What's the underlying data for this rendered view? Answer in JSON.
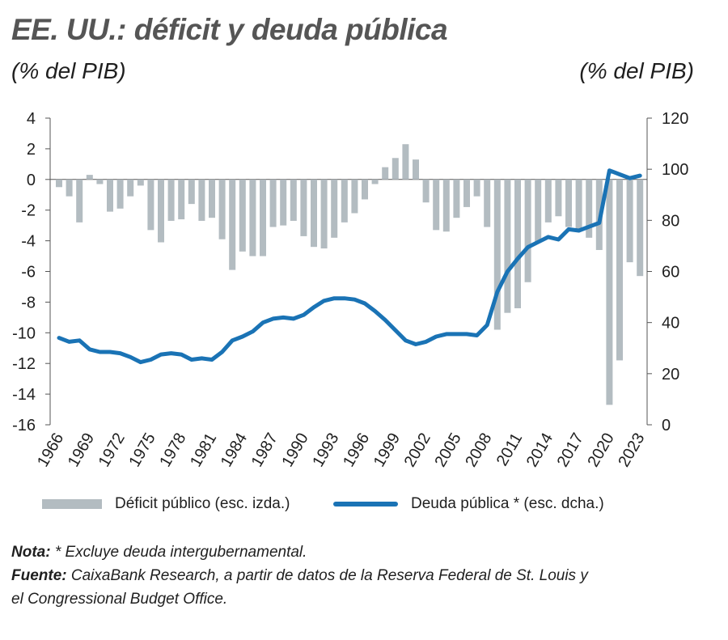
{
  "header": {
    "title": "EE. UU.: déficit y deuda pública",
    "unit_left": "(% del PIB)",
    "unit_right": "(% del PIB)"
  },
  "chart_data": {
    "type": "bar+line",
    "x": [
      1966,
      1967,
      1968,
      1969,
      1970,
      1971,
      1972,
      1973,
      1974,
      1975,
      1976,
      1977,
      1978,
      1979,
      1980,
      1981,
      1982,
      1983,
      1984,
      1985,
      1986,
      1987,
      1988,
      1989,
      1990,
      1991,
      1992,
      1993,
      1994,
      1995,
      1996,
      1997,
      1998,
      1999,
      2000,
      2001,
      2002,
      2003,
      2004,
      2005,
      2006,
      2007,
      2008,
      2009,
      2010,
      2011,
      2012,
      2013,
      2014,
      2015,
      2016,
      2017,
      2018,
      2019,
      2020,
      2021,
      2022,
      2023
    ],
    "x_tick_labels": [
      "1966",
      "1969",
      "1972",
      "1975",
      "1978",
      "1981",
      "1984",
      "1987",
      "1990",
      "1993",
      "1996",
      "1999",
      "2002",
      "2005",
      "2008",
      "2011",
      "2014",
      "2017",
      "2020",
      "2023"
    ],
    "series": [
      {
        "name": "Déficit público (esc. izda.)",
        "type": "bar",
        "axis": "left",
        "color": "#b3bcc1",
        "values": [
          -0.5,
          -1.1,
          -2.8,
          0.3,
          -0.3,
          -2.1,
          -1.9,
          -1.1,
          -0.4,
          -3.3,
          -4.1,
          -2.7,
          -2.6,
          -1.6,
          -2.7,
          -2.5,
          -3.9,
          -5.9,
          -4.7,
          -5.0,
          -5.0,
          -3.1,
          -3.0,
          -2.7,
          -3.7,
          -4.4,
          -4.5,
          -3.8,
          -2.8,
          -2.2,
          -1.3,
          -0.3,
          0.8,
          1.4,
          2.3,
          1.3,
          -1.5,
          -3.3,
          -3.4,
          -2.5,
          -1.8,
          -1.1,
          -3.1,
          -9.8,
          -8.7,
          -8.4,
          -6.7,
          -4.1,
          -2.8,
          -2.4,
          -3.1,
          -3.4,
          -3.8,
          -4.6,
          -14.7,
          -11.8,
          -5.4,
          -6.3
        ]
      },
      {
        "name": "Deuda pública * (esc. dcha.)",
        "type": "line",
        "axis": "right",
        "color": "#1a73b5",
        "values": [
          34,
          32.5,
          33,
          29.5,
          28.5,
          28.5,
          28,
          26.5,
          24.5,
          25.5,
          27.5,
          28,
          27.5,
          25.5,
          26,
          25.5,
          28.5,
          33,
          34.5,
          36.5,
          40,
          41.5,
          42,
          41.5,
          43,
          46,
          48.5,
          49.5,
          49.5,
          49,
          47.5,
          44.5,
          41,
          37,
          33,
          31.5,
          32.5,
          34.5,
          35.5,
          35.5,
          35.5,
          35,
          39,
          52,
          60,
          65,
          69.5,
          71.5,
          73.5,
          72.5,
          76.5,
          76,
          77.5,
          79,
          99.5,
          98,
          96.5,
          97.5
        ]
      }
    ],
    "y_left": {
      "min": -16,
      "max": 4,
      "ticks": [
        "4",
        "2",
        "0",
        "-2",
        "-4",
        "-6",
        "-8",
        "-10",
        "-12",
        "-14",
        "-16"
      ]
    },
    "y_right": {
      "min": 0,
      "max": 120,
      "ticks": [
        "120",
        "100",
        "80",
        "60",
        "40",
        "20",
        "0"
      ]
    },
    "grid": false
  },
  "legend": {
    "deficit_label": "Déficit público (esc. izda.)",
    "debt_label": "Deuda pública * (esc. dcha.)"
  },
  "notes": {
    "nota_label": "Nota:",
    "nota_text": " * Excluye deuda intergubernamental.",
    "fuente_label": "Fuente:",
    "fuente_text_1": " CaixaBank Research, a partir de datos de la Reserva Federal de St. Louis y",
    "fuente_text_2": "el Congressional Budget Office."
  }
}
